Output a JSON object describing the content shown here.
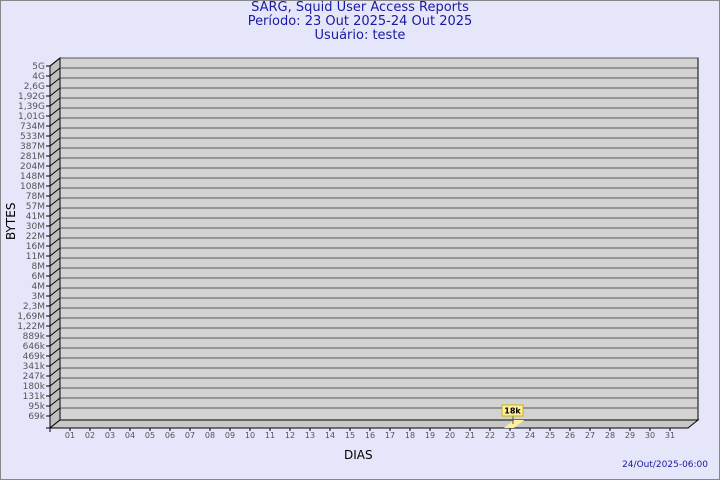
{
  "title": {
    "line1": "SARG, Squid User Access Reports",
    "line2": "Período: 23 Out 2025-24 Out 2025",
    "line3": "Usuário: teste"
  },
  "timestamp": "24/Out/2025-06:00",
  "colors": {
    "background": "#e6e6fa",
    "plot": "#d3d3d3",
    "bar": "#fff0a0",
    "title": "#1a1aa0"
  },
  "chart_data": {
    "type": "bar",
    "style": "3d",
    "xlabel": "DIAS",
    "ylabel": "BYTES",
    "y_scale": "log",
    "grid": true,
    "y_ticks": [
      "5G",
      "4G",
      "2,6G",
      "1,92G",
      "1,39G",
      "1,01G",
      "734M",
      "533M",
      "387M",
      "281M",
      "204M",
      "148M",
      "108M",
      "78M",
      "57M",
      "41M",
      "30M",
      "22M",
      "16M",
      "11M",
      "8M",
      "6M",
      "4M",
      "3M",
      "2,3M",
      "1,69M",
      "1,22M",
      "889k",
      "646k",
      "469k",
      "341k",
      "247k",
      "180k",
      "131k",
      "95k",
      "69k"
    ],
    "categories": [
      "01",
      "02",
      "03",
      "04",
      "05",
      "06",
      "07",
      "08",
      "09",
      "10",
      "11",
      "12",
      "13",
      "14",
      "15",
      "16",
      "17",
      "18",
      "19",
      "20",
      "21",
      "22",
      "23",
      "24",
      "25",
      "26",
      "27",
      "28",
      "29",
      "30",
      "31"
    ],
    "values": [
      null,
      null,
      null,
      null,
      null,
      null,
      null,
      null,
      null,
      null,
      null,
      null,
      null,
      null,
      null,
      null,
      null,
      null,
      null,
      null,
      null,
      null,
      18000,
      null,
      null,
      null,
      null,
      null,
      null,
      null,
      null
    ],
    "data_labels": {
      "23": "18k"
    }
  }
}
